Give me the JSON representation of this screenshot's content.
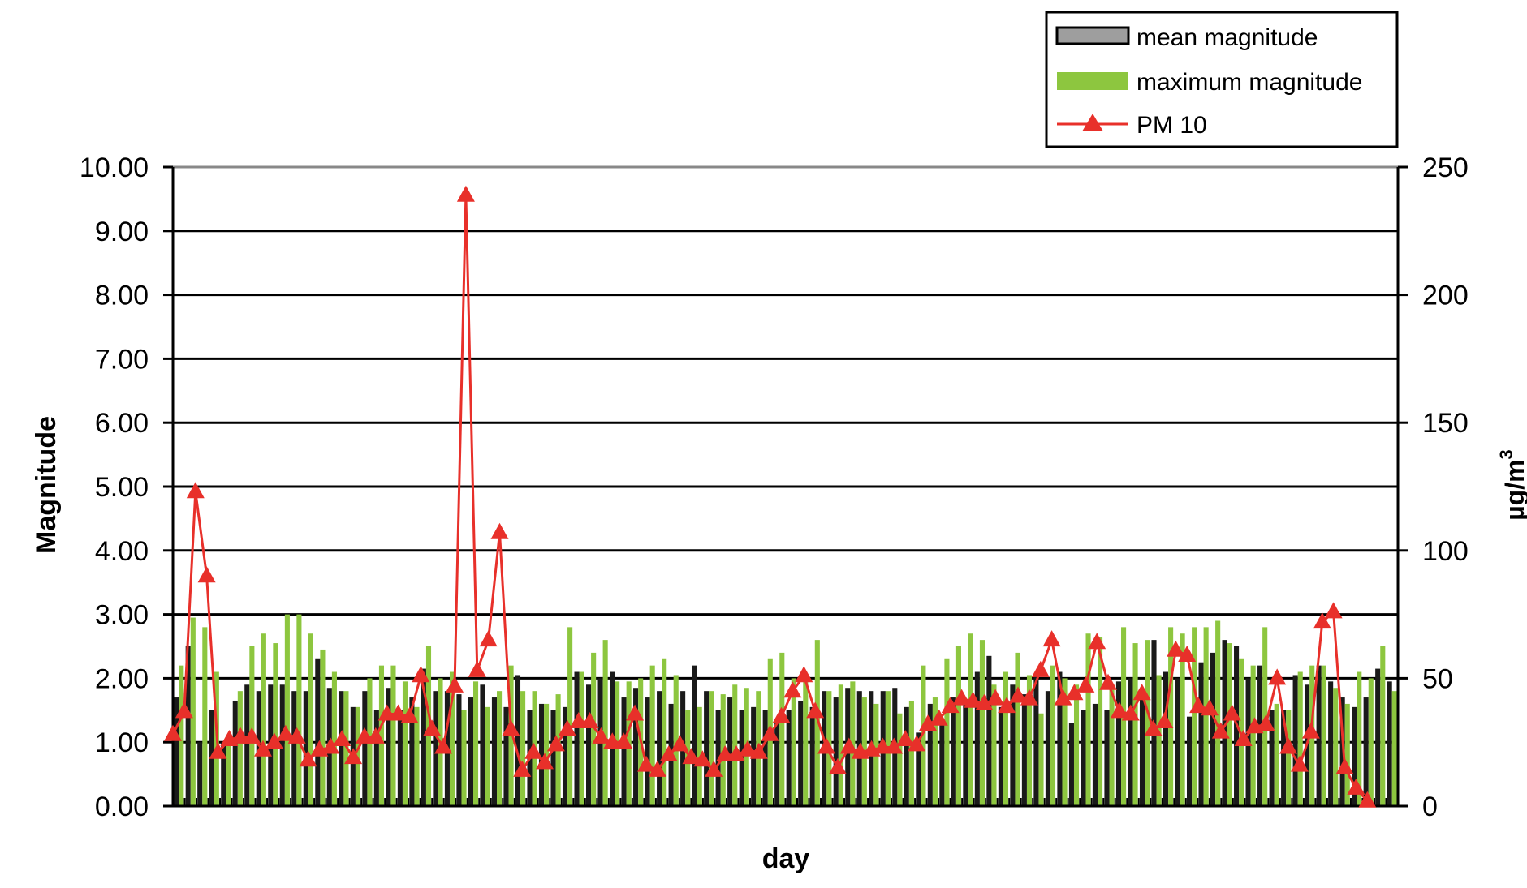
{
  "chart_data": {
    "type": "bar",
    "xlabel": "day",
    "ylabel": "Magnitude",
    "y2label": "µg/m",
    "y2label_superscript": "3",
    "ylim": [
      0,
      10
    ],
    "y2lim": [
      0,
      250
    ],
    "yticks": [
      "0.00",
      "1.00",
      "2.00",
      "3.00",
      "4.00",
      "5.00",
      "6.00",
      "7.00",
      "8.00",
      "9.00",
      "10.00"
    ],
    "y2ticks": [
      "0",
      "50",
      "100",
      "150",
      "200",
      "250"
    ],
    "grid": true,
    "legend_position": "top-right",
    "series": [
      {
        "name": "mean magnitude",
        "kind": "bar",
        "color": "#1a1a1a",
        "values": [
          1.7,
          2.5,
          1.0,
          1.5,
          1.0,
          1.65,
          1.9,
          1.8,
          1.9,
          1.9,
          1.8,
          1.8,
          2.3,
          1.85,
          1.8,
          1.55,
          1.8,
          1.5,
          1.85,
          1.5,
          1.7,
          2.15,
          1.8,
          1.8,
          1.75,
          1.7,
          1.9,
          1.7,
          1.55,
          2.05,
          1.5,
          1.6,
          1.5,
          1.55,
          2.1,
          1.9,
          2.0,
          2.1,
          1.7,
          1.85,
          1.7,
          1.8,
          1.6,
          1.8,
          2.2,
          1.8,
          1.5,
          1.7,
          1.5,
          1.55,
          1.5,
          1.35,
          1.5,
          1.65,
          1.55,
          1.8,
          1.7,
          1.85,
          1.8,
          1.8,
          1.8,
          1.85,
          1.55,
          1.15,
          1.6,
          1.3,
          1.7,
          1.65,
          2.1,
          2.35,
          1.55,
          1.9,
          1.75,
          2.05,
          1.8,
          2.1,
          1.3,
          1.5,
          1.6,
          1.5,
          1.95,
          2.0,
          1.7,
          2.6,
          2.1,
          2.0,
          1.4,
          2.25,
          2.4,
          2.6,
          2.5,
          2.0,
          2.2,
          1.5,
          1.5,
          2.05,
          1.9,
          2.2,
          1.95,
          1.7,
          1.55,
          1.7,
          2.15,
          1.95
        ]
      },
      {
        "name": "maximum magnitude",
        "kind": "bar",
        "color": "#8dc63f",
        "values": [
          2.2,
          2.95,
          2.8,
          2.1,
          1.0,
          1.8,
          2.5,
          2.7,
          2.55,
          3.0,
          3.0,
          2.7,
          2.45,
          2.1,
          1.8,
          1.55,
          2.0,
          2.2,
          2.2,
          1.95,
          1.55,
          2.5,
          2.0,
          2.1,
          1.5,
          1.95,
          1.55,
          1.8,
          2.2,
          1.8,
          1.8,
          1.6,
          1.75,
          2.8,
          2.1,
          2.4,
          2.6,
          1.95,
          1.95,
          2.0,
          2.2,
          2.3,
          2.05,
          1.5,
          1.55,
          1.8,
          1.75,
          1.9,
          1.85,
          1.8,
          2.3,
          2.4,
          2.0,
          2.0,
          2.6,
          1.8,
          1.9,
          1.95,
          1.7,
          1.6,
          1.8,
          1.45,
          1.65,
          2.2,
          1.7,
          2.3,
          2.5,
          2.7,
          2.6,
          1.9,
          2.1,
          2.4,
          2.05,
          1.45,
          2.2,
          2.0,
          1.9,
          2.7,
          2.65,
          1.9,
          2.8,
          2.55,
          2.6,
          2.05,
          2.8,
          2.7,
          2.8,
          2.8,
          2.9,
          2.55,
          2.3,
          2.2,
          2.8,
          1.6,
          1.5,
          2.1,
          2.2,
          2.2,
          1.85,
          1.6,
          2.1,
          2.0,
          2.5,
          1.8
        ]
      },
      {
        "name": "PM 10",
        "kind": "line",
        "axis": "right",
        "color": "#e8302a",
        "values": [
          28,
          37,
          123,
          90,
          21,
          26,
          27,
          27,
          22,
          25,
          28,
          27,
          18,
          22,
          23,
          26,
          19,
          27,
          27,
          36,
          36,
          35,
          51,
          30,
          23,
          47,
          239,
          53,
          65,
          107,
          30,
          14,
          21,
          17,
          24,
          30,
          33,
          33,
          27,
          25,
          25,
          36,
          16,
          14,
          20,
          24,
          19,
          18,
          14,
          20,
          20,
          22,
          21,
          28,
          35,
          45,
          51,
          37,
          23,
          15,
          23,
          21,
          22,
          23,
          23,
          26,
          24,
          32,
          34,
          39,
          42,
          41,
          40,
          42,
          39,
          43,
          42,
          53,
          65,
          42,
          44,
          47,
          64,
          48,
          37,
          36,
          44,
          30,
          33,
          61,
          59,
          39,
          38,
          29,
          36,
          26,
          31,
          32,
          50,
          23,
          16,
          29,
          72,
          76,
          15,
          7,
          2
        ]
      }
    ]
  }
}
